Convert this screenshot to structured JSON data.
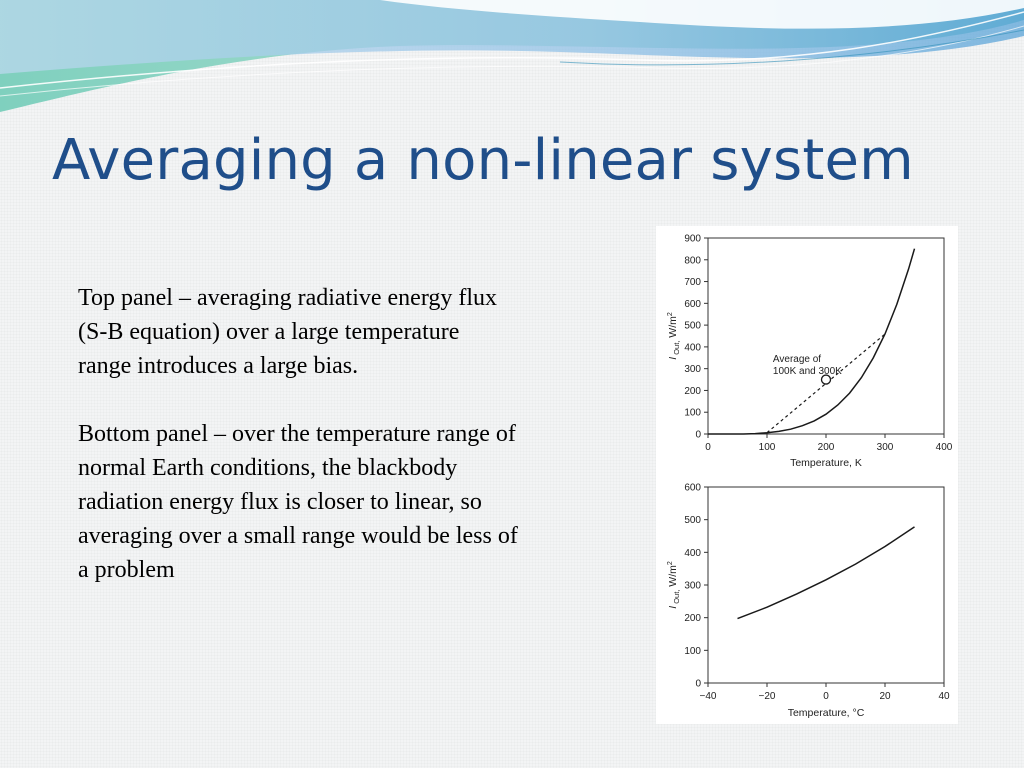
{
  "slide": {
    "title": "Averaging a non-linear system",
    "paragraphs": [
      "Top panel – averaging radiative energy flux (S-B equation) over a large temperature range introduces a large bias.",
      "Bottom panel – over the temperature range of normal Earth conditions, the blackbody radiation energy flux is closer to linear, so averaging over a small range would be less of a problem"
    ]
  },
  "colors": {
    "title": "#1f4e8a",
    "banner_teal": "#6fc7b8",
    "banner_blue": "#9cc8e6",
    "curve": "#1a1a1a"
  },
  "chart_data": [
    {
      "type": "line",
      "title": "",
      "xlabel": "Temperature, K",
      "ylabel": "I Out, W/m²",
      "ylabel_main": "I",
      "ylabel_sub": "Out,",
      "ylabel_unit": " W/m",
      "ylabel_sup": "2",
      "xlim": [
        0,
        400
      ],
      "ylim": [
        0,
        900
      ],
      "xticks": [
        "0",
        "100",
        "200",
        "300",
        "400"
      ],
      "yticks": [
        "0",
        "100",
        "200",
        "300",
        "400",
        "500",
        "600",
        "700",
        "800",
        "900"
      ],
      "grid": false,
      "x": [
        0,
        20,
        40,
        60,
        80,
        100,
        120,
        140,
        160,
        180,
        200,
        220,
        240,
        260,
        280,
        300,
        320,
        340,
        350
      ],
      "y": [
        0,
        0,
        0,
        0,
        2,
        6,
        12,
        22,
        38,
        60,
        91,
        133,
        188,
        259,
        349,
        459,
        595,
        758,
        851
      ],
      "chord": {
        "x": [
          100,
          300
        ],
        "y": [
          6,
          459
        ]
      },
      "marker": {
        "x": 200,
        "y": 250
      },
      "annotation": [
        "Average of",
        "100K and 300K"
      ],
      "annotation_at": {
        "x": 110,
        "y": 330
      }
    },
    {
      "type": "line",
      "title": "",
      "xlabel": "Temperature, °C",
      "ylabel": "I Out, W/m²",
      "ylabel_main": "I",
      "ylabel_sub": "Out,",
      "ylabel_unit": " W/m",
      "ylabel_sup": "2",
      "xlim": [
        -40,
        40
      ],
      "ylim": [
        0,
        600
      ],
      "xticks": [
        "−40",
        "−20",
        "0",
        "20",
        "40"
      ],
      "yticks": [
        "0",
        "100",
        "200",
        "300",
        "400",
        "500",
        "600"
      ],
      "grid": false,
      "x": [
        -30,
        -20,
        -10,
        0,
        10,
        20,
        30
      ],
      "y": [
        197,
        232,
        272,
        316,
        364,
        418,
        478
      ]
    }
  ]
}
